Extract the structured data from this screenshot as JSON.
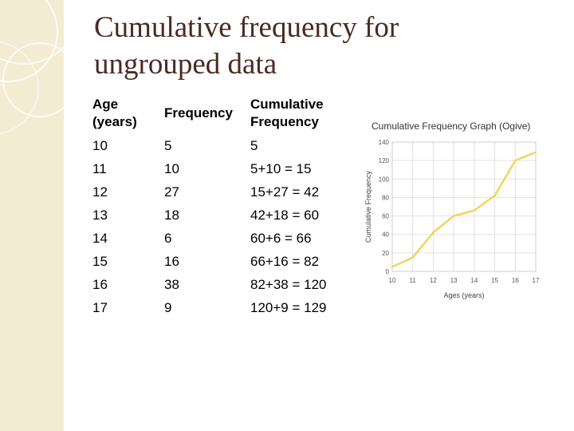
{
  "slide": {
    "title_line1": "Cumulative frequency for",
    "title_line2": "ungrouped data",
    "accent_color": "#4b2a22",
    "band_color": "#f3ecd2"
  },
  "table": {
    "headers": {
      "age_line1": "Age",
      "age_line2": "(years)",
      "frequency": "Frequency",
      "cumulative_line1": "Cumulative",
      "cumulative_line2": "Frequency"
    },
    "rows": [
      {
        "age": "10",
        "freq": "5",
        "cum": "5"
      },
      {
        "age": "11",
        "freq": "10",
        "cum": "5+10 = 15"
      },
      {
        "age": "12",
        "freq": "27",
        "cum": "15+27 = 42"
      },
      {
        "age": "13",
        "freq": "18",
        "cum": "42+18 = 60"
      },
      {
        "age": "14",
        "freq": "6",
        "cum": "60+6 = 66"
      },
      {
        "age": "15",
        "freq": "16",
        "cum": "66+16 = 82"
      },
      {
        "age": "16",
        "freq": "38",
        "cum": "82+38 = 120"
      },
      {
        "age": "17",
        "freq": "9",
        "cum": "120+9 = 129"
      }
    ]
  },
  "chart_data": {
    "type": "line",
    "title": "Cumulative Frequency Graph (Ogive)",
    "xlabel": "Ages (years)",
    "ylabel": "Cumulative Frequency",
    "x": [
      10,
      11,
      12,
      13,
      14,
      15,
      16,
      17
    ],
    "series": [
      {
        "values": [
          5,
          15,
          42,
          60,
          66,
          82,
          120,
          129
        ]
      }
    ],
    "xlim": [
      10,
      17
    ],
    "ylim": [
      0,
      140
    ],
    "yticks": [
      "0",
      "20",
      "40",
      "60",
      "80",
      "100",
      "120",
      "140"
    ],
    "xticks": [
      "10",
      "11",
      "12",
      "13",
      "14",
      "15",
      "16",
      "17"
    ],
    "grid": true,
    "line_color": "#f2d45c",
    "grid_color": "#e2e2e2"
  }
}
